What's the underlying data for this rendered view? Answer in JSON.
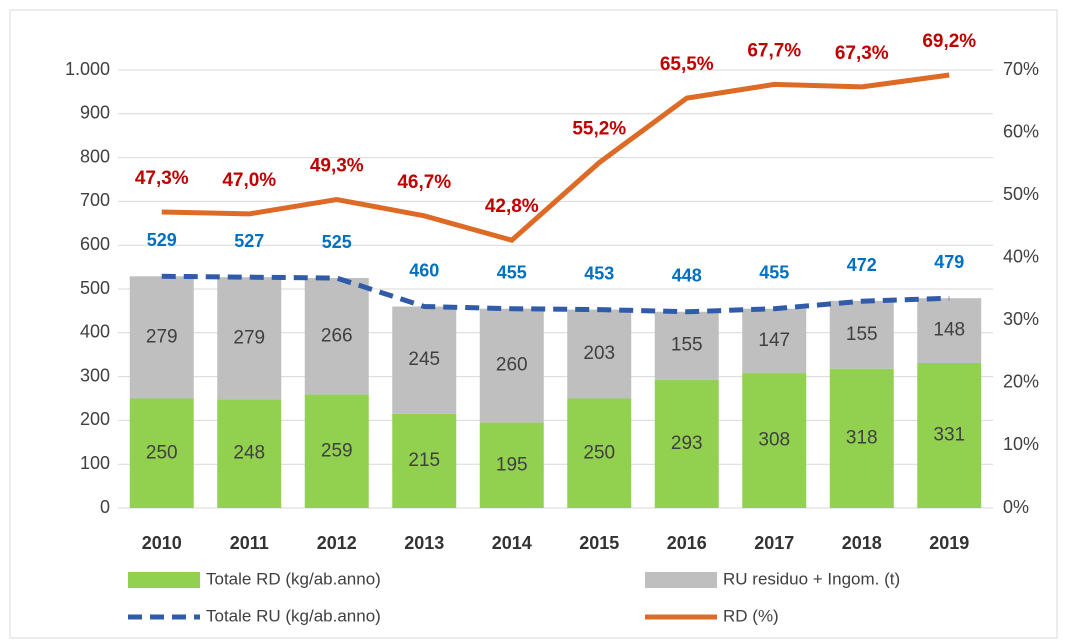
{
  "chart_data": {
    "type": "bar",
    "categories": [
      "2010",
      "2011",
      "2012",
      "2013",
      "2014",
      "2015",
      "2016",
      "2017",
      "2018",
      "2019"
    ],
    "series": [
      {
        "name": "Totale RD (kg/ab.anno)",
        "type": "bar",
        "color": "#92d050",
        "values": [
          250,
          248,
          259,
          215,
          195,
          250,
          293,
          308,
          318,
          331
        ]
      },
      {
        "name": "RU residuo + Ingom. (t)",
        "type": "bar",
        "color": "#bfbfbf",
        "values": [
          279,
          279,
          266,
          245,
          260,
          203,
          155,
          147,
          155,
          148
        ]
      },
      {
        "name": "Totale RU (kg/ab.anno)",
        "type": "line",
        "line_style": "dashed",
        "color": "#2f5ba8",
        "label_color": "#0070c0",
        "values": [
          529,
          527,
          525,
          460,
          455,
          453,
          448,
          455,
          472,
          479
        ]
      },
      {
        "name": "RD (%)",
        "type": "line",
        "axis": "y2",
        "color": "#dd6b26",
        "label_color": "#c00000",
        "values": [
          47.3,
          47.0,
          49.3,
          46.7,
          42.8,
          55.2,
          65.5,
          67.7,
          67.3,
          69.2
        ],
        "value_labels": [
          "47,3%",
          "47,0%",
          "49,3%",
          "46,7%",
          "42,8%",
          "55,2%",
          "65,5%",
          "67,7%",
          "67,3%",
          "69,2%"
        ]
      }
    ],
    "ylim": [
      0,
      1000
    ],
    "yticks": [
      0,
      100,
      200,
      300,
      400,
      500,
      600,
      700,
      800,
      900,
      {
        "value": 1000,
        "label": "1.000"
      }
    ],
    "y2lim": [
      0,
      70
    ],
    "y2ticks": [
      {
        "value": 0,
        "label": "0%"
      },
      {
        "value": 10,
        "label": "10%"
      },
      {
        "value": 20,
        "label": "20%"
      },
      {
        "value": 30,
        "label": "30%"
      },
      {
        "value": 40,
        "label": "40%"
      },
      {
        "value": 50,
        "label": "50%"
      },
      {
        "value": 60,
        "label": "60%"
      },
      {
        "value": 70,
        "label": "70%"
      }
    ],
    "grid": true,
    "legend": "bottom"
  }
}
